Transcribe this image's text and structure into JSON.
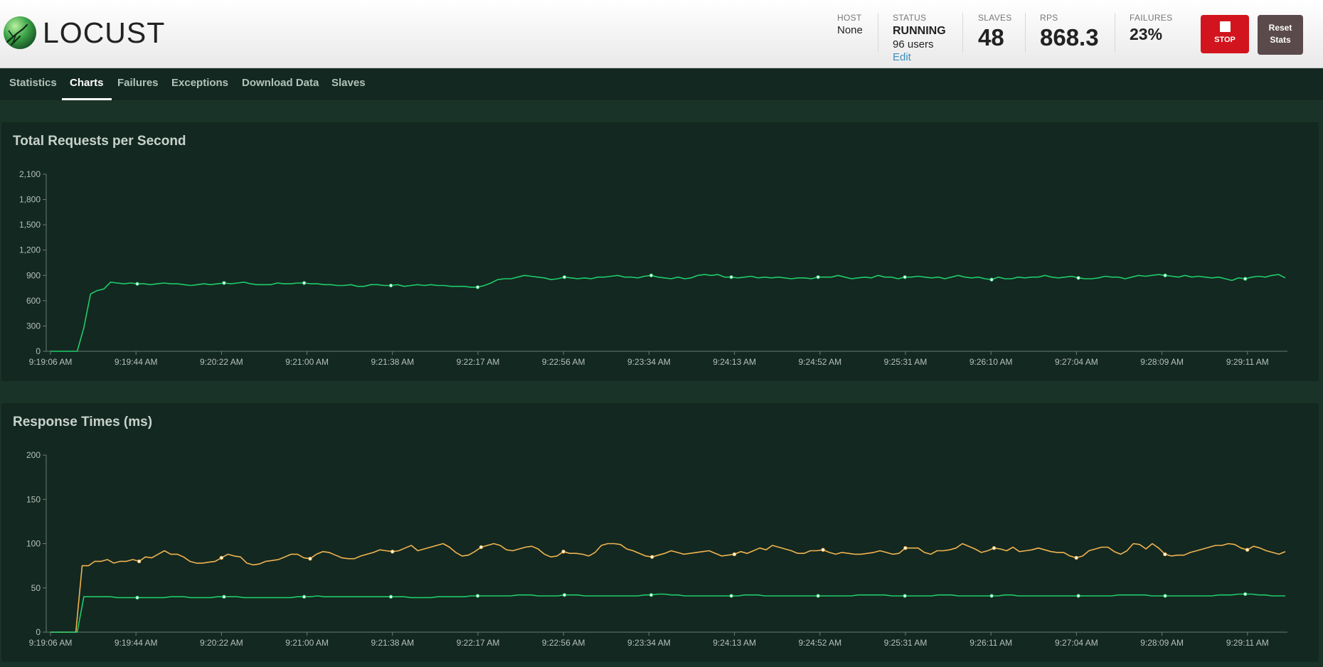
{
  "header": {
    "logo_text": "LOCUST",
    "host": {
      "label": "HOST",
      "value": "None"
    },
    "status": {
      "label": "STATUS",
      "value": "RUNNING",
      "users": "96 users",
      "edit": "Edit"
    },
    "slaves": {
      "label": "SLAVES",
      "value": "48"
    },
    "rps": {
      "label": "RPS",
      "value": "868.3"
    },
    "failures": {
      "label": "FAILURES",
      "value": "23%"
    },
    "stop_label": "STOP",
    "reset_label_line1": "Reset",
    "reset_label_line2": "Stats",
    "colors": {
      "stop": "#d2141e",
      "reset": "#5a4a4c"
    }
  },
  "nav": {
    "tabs": [
      {
        "label": "Statistics",
        "active": false
      },
      {
        "label": "Charts",
        "active": true
      },
      {
        "label": "Failures",
        "active": false
      },
      {
        "label": "Exceptions",
        "active": false
      },
      {
        "label": "Download Data",
        "active": false
      },
      {
        "label": "Slaves",
        "active": false
      }
    ]
  },
  "charts": {
    "rps_title": "Total Requests per Second",
    "rt_title": "Response Times (ms)"
  },
  "chart_data": [
    {
      "type": "line",
      "title": "Total Requests per Second",
      "ylim": [
        0,
        2100
      ],
      "yticks": [
        "0",
        "300",
        "600",
        "900",
        "1,200",
        "1,500",
        "1,800",
        "2,100"
      ],
      "xtick_labels": [
        "9:19:06 AM",
        "9:19:44 AM",
        "9:20:22 AM",
        "9:21:00 AM",
        "9:21:38 AM",
        "9:22:17 AM",
        "9:22:56 AM",
        "9:23:34 AM",
        "9:24:13 AM",
        "9:24:52 AM",
        "9:25:31 AM",
        "9:26:10 AM",
        "9:27:04 AM",
        "9:28:09 AM",
        "9:29:11 AM"
      ],
      "series": [
        {
          "color": "#1fcc6b",
          "values": [
            0,
            0,
            0,
            0,
            0,
            280,
            680,
            720,
            740,
            820,
            810,
            800,
            810,
            800,
            800,
            790,
            800,
            810,
            800,
            800,
            790,
            780,
            790,
            800,
            790,
            800,
            810,
            800,
            810,
            820,
            800,
            790,
            790,
            790,
            810,
            800,
            800,
            810,
            810,
            800,
            800,
            790,
            790,
            780,
            780,
            790,
            770,
            770,
            790,
            790,
            780,
            780,
            790,
            770,
            780,
            790,
            780,
            790,
            780,
            780,
            770,
            770,
            770,
            760,
            760,
            780,
            810,
            850,
            860,
            860,
            880,
            900,
            890,
            880,
            870,
            850,
            860,
            880,
            870,
            860,
            870,
            860,
            880,
            880,
            890,
            900,
            880,
            880,
            870,
            890,
            900,
            880,
            870,
            860,
            880,
            860,
            870,
            900,
            910,
            900,
            910,
            880,
            880,
            870,
            880,
            890,
            870,
            880,
            870,
            880,
            870,
            860,
            870,
            870,
            860,
            880,
            880,
            880,
            900,
            880,
            860,
            870,
            880,
            870,
            900,
            880,
            880,
            860,
            880,
            880,
            890,
            880,
            870,
            880,
            860,
            880,
            900,
            880,
            870,
            880,
            860,
            850,
            880,
            860,
            860,
            880,
            870,
            880,
            880,
            900,
            880,
            870,
            880,
            890,
            870,
            860,
            860,
            870,
            890,
            880,
            880,
            860,
            880,
            900,
            890,
            900,
            910,
            900,
            890,
            880,
            900,
            880,
            890,
            880,
            870,
            880,
            860,
            840,
            870,
            860,
            880,
            890,
            880,
            900,
            910,
            870
          ]
        }
      ]
    },
    {
      "type": "line",
      "title": "Response Times (ms)",
      "ylim": [
        0,
        200
      ],
      "yticks": [
        "0",
        "50",
        "100",
        "150",
        "200"
      ],
      "xtick_labels": [
        "9:19:06 AM",
        "9:19:44 AM",
        "9:20:22 AM",
        "9:21:00 AM",
        "9:21:38 AM",
        "9:22:17 AM",
        "9:22:56 AM",
        "9:23:34 AM",
        "9:24:13 AM",
        "9:24:52 AM",
        "9:25:31 AM",
        "9:26:11 AM",
        "9:27:04 AM",
        "9:28:09 AM",
        "9:29:11 AM"
      ],
      "series": [
        {
          "color": "#f0b350",
          "values": [
            0,
            0,
            0,
            0,
            0,
            75,
            75,
            80,
            80,
            82,
            78,
            80,
            80,
            82,
            80,
            85,
            84,
            88,
            92,
            88,
            88,
            85,
            80,
            78,
            78,
            79,
            80,
            84,
            88,
            86,
            85,
            78,
            76,
            77,
            80,
            81,
            82,
            85,
            88,
            88,
            84,
            83,
            88,
            91,
            90,
            87,
            84,
            83,
            83,
            86,
            88,
            90,
            93,
            92,
            91,
            92,
            95,
            98,
            92,
            94,
            96,
            98,
            100,
            96,
            90,
            86,
            87,
            91,
            96,
            98,
            100,
            98,
            93,
            92,
            94,
            96,
            97,
            94,
            88,
            85,
            86,
            91,
            89,
            89,
            88,
            86,
            90,
            98,
            100,
            100,
            99,
            94,
            92,
            89,
            86,
            85,
            87,
            89,
            92,
            90,
            88,
            89,
            90,
            91,
            92,
            89,
            86,
            87,
            88,
            91,
            89,
            92,
            95,
            93,
            98,
            96,
            94,
            92,
            89,
            89,
            92,
            92,
            93,
            90,
            88,
            90,
            89,
            88,
            88,
            89,
            90,
            92,
            90,
            88,
            89,
            95,
            95,
            95,
            90,
            88,
            92,
            92,
            93,
            95,
            100,
            97,
            94,
            90,
            92,
            95,
            94,
            92,
            96,
            91,
            92,
            93,
            95,
            93,
            91,
            90,
            90,
            86,
            84,
            86,
            92,
            94,
            96,
            96,
            91,
            88,
            92,
            100,
            99,
            94,
            100,
            95,
            88,
            86,
            87,
            87,
            90,
            92,
            94,
            96,
            98,
            98,
            100,
            99,
            95,
            93,
            97,
            95,
            92,
            90,
            88,
            91
          ]
        },
        {
          "color": "#1fcc6b",
          "values": [
            0,
            0,
            0,
            0,
            0,
            40,
            40,
            40,
            40,
            40,
            39,
            39,
            39,
            39,
            39,
            39,
            39,
            39,
            40,
            40,
            40,
            39,
            39,
            39,
            39,
            40,
            40,
            40,
            40,
            39,
            39,
            39,
            39,
            39,
            39,
            39,
            39,
            40,
            40,
            40,
            41,
            40,
            40,
            40,
            40,
            40,
            40,
            40,
            40,
            40,
            40,
            40,
            40,
            40,
            39,
            39,
            39,
            39,
            40,
            40,
            40,
            40,
            40,
            41,
            41,
            41,
            41,
            41,
            41,
            41,
            42,
            42,
            42,
            41,
            41,
            41,
            41,
            42,
            42,
            42,
            41,
            41,
            41,
            41,
            41,
            41,
            41,
            41,
            41,
            42,
            42,
            43,
            43,
            42,
            42,
            41,
            41,
            41,
            41,
            41,
            41,
            41,
            41,
            41,
            42,
            42,
            42,
            41,
            41,
            41,
            41,
            41,
            41,
            41,
            41,
            41,
            41,
            41,
            41,
            41,
            41,
            42,
            42,
            42,
            42,
            42,
            41,
            41,
            41,
            41,
            41,
            41,
            41,
            42,
            42,
            42,
            41,
            41,
            41,
            41,
            41,
            41,
            41,
            42,
            42,
            41,
            41,
            41,
            41,
            41,
            41,
            41,
            41,
            41,
            41,
            41,
            41,
            41,
            41,
            41,
            42,
            42,
            42,
            42,
            42,
            41,
            41,
            41,
            41,
            41,
            41,
            41,
            41,
            41,
            41,
            42,
            42,
            42,
            43,
            43,
            43,
            42,
            42,
            41,
            41,
            41
          ]
        }
      ]
    }
  ]
}
